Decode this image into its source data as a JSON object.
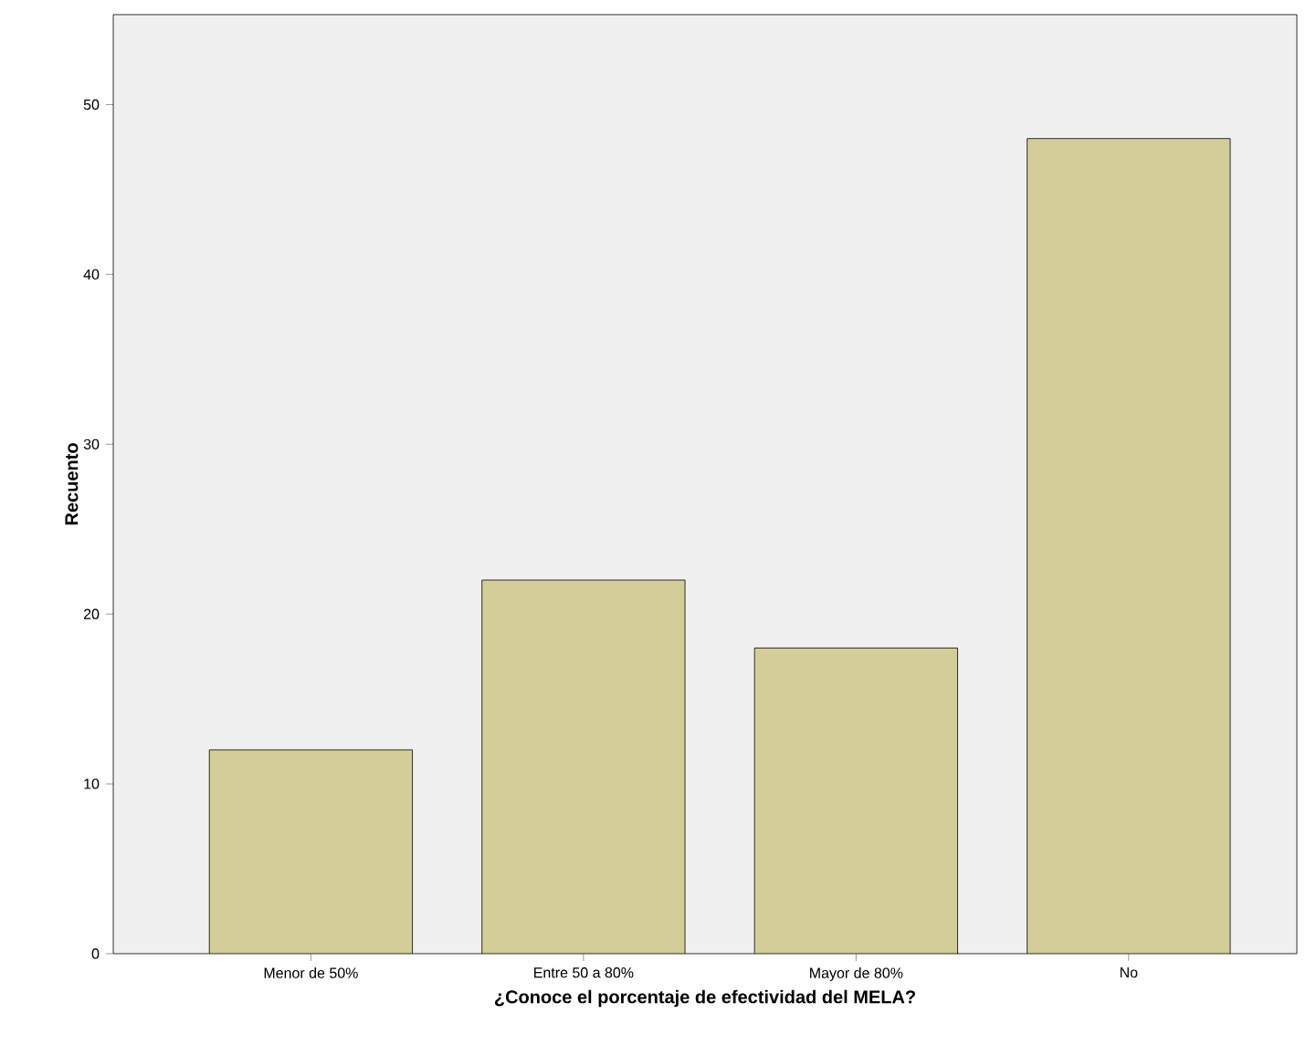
{
  "chart_data": {
    "type": "bar",
    "xlabel": "¿Conoce el porcentaje de efectividad del MELA?",
    "ylabel": "Recuento",
    "categories": [
      "Menor de 50%",
      "Entre 50 a 80%",
      "Mayor de 80%",
      "No"
    ],
    "values": [
      12,
      22,
      18,
      48
    ],
    "color": "#d3ce97",
    "ylim": [
      0,
      55.3
    ],
    "yticks": [
      0,
      10,
      20,
      30,
      40,
      50
    ]
  }
}
